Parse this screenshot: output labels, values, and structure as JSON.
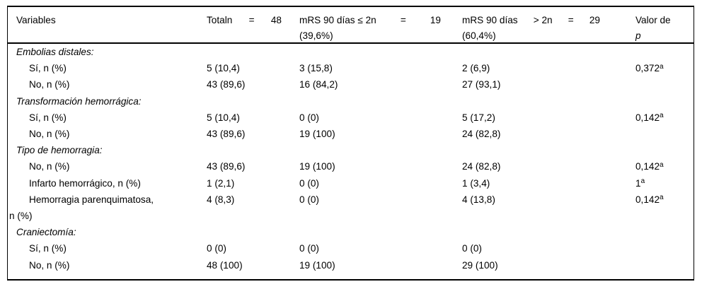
{
  "colors": {
    "text": "#000000",
    "border": "#000000",
    "background": "#ffffff"
  },
  "table": {
    "header": {
      "variables": "Variables",
      "total_tokens": [
        "Totaln",
        "=",
        "48"
      ],
      "mrs_le2_tokens": [
        "mRS 90 días ≤ 2n",
        "=",
        "19"
      ],
      "mrs_le2_line2": "(39,6%)",
      "mrs_gt2_tokens": [
        "mRS 90 días",
        "> 2n",
        "=",
        "29"
      ],
      "mrs_gt2_line2": "(60,4%)",
      "p_line1": "Valor de",
      "p_line2": "p"
    },
    "sections": [
      {
        "label": "Embolias distales:",
        "rows": [
          {
            "variable": "Sí, n (%)",
            "total": "5 (10,4)",
            "mrs_le2": "3 (15,8)",
            "mrs_gt2": "2 (6,9)",
            "p": "0,372",
            "p_sup": "a"
          },
          {
            "variable": "No, n (%)",
            "total": "43 (89,6)",
            "mrs_le2": "16 (84,2)",
            "mrs_gt2": "27 (93,1)",
            "p": "",
            "p_sup": ""
          }
        ]
      },
      {
        "label": "Transformación hemorrágica:",
        "rows": [
          {
            "variable": "Sí, n (%)",
            "total": "5 (10,4)",
            "mrs_le2": "0 (0)",
            "mrs_gt2": "5 (17,2)",
            "p": "0,142",
            "p_sup": "a"
          },
          {
            "variable": "No, n (%)",
            "total": "43 (89,6)",
            "mrs_le2": "19 (100)",
            "mrs_gt2": "24 (82,8)",
            "p": "",
            "p_sup": ""
          }
        ]
      },
      {
        "label": "Tipo de hemorragia:",
        "rows": [
          {
            "variable": "No, n (%)",
            "total": "43 (89,6)",
            "mrs_le2": "19 (100)",
            "mrs_gt2": "24 (82,8)",
            "p": "0,142",
            "p_sup": "a"
          },
          {
            "variable": "Infarto hemorrágico, n (%)",
            "total": "1 (2,1)",
            "mrs_le2": "0 (0)",
            "mrs_gt2": "1 (3,4)",
            "p": "1",
            "p_sup": "a"
          },
          {
            "variable": "Hemorragia parenquimatosa,\nn (%)",
            "total": "4 (8,3)",
            "mrs_le2": "0 (0)",
            "mrs_gt2": "4 (13,8)",
            "p": "0,142",
            "p_sup": "a"
          }
        ]
      },
      {
        "label": "Craniectomía:",
        "rows": [
          {
            "variable": "Sí, n (%)",
            "total": "0 (0)",
            "mrs_le2": "0 (0)",
            "mrs_gt2": "0 (0)",
            "p": "",
            "p_sup": ""
          },
          {
            "variable": "No, n (%)",
            "total": "48 (100)",
            "mrs_le2": "19 (100)",
            "mrs_gt2": "29 (100)",
            "p": "",
            "p_sup": ""
          }
        ]
      }
    ]
  }
}
